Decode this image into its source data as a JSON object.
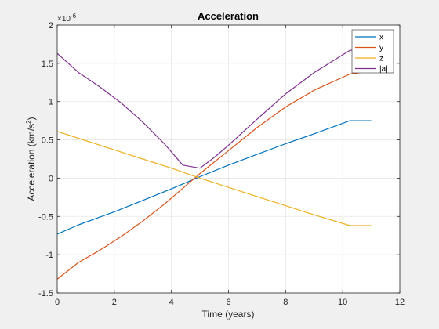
{
  "chart_data": {
    "type": "line",
    "title": "Acceleration",
    "xlabel": "Time (years)",
    "ylabel_main": "Acceleration (km/s",
    "ylabel_sup": "2",
    "ylabel_end": ")",
    "y_exponent_base": "×10",
    "y_exponent_power": "-6",
    "xlim": [
      0,
      12
    ],
    "ylim": [
      -1.5,
      2
    ],
    "xticks": [
      0,
      2,
      4,
      6,
      8,
      10,
      12
    ],
    "yticks": [
      -1.5,
      -1,
      -0.5,
      0,
      0.5,
      1,
      1.5,
      2
    ],
    "xtick_labels": [
      "0",
      "2",
      "4",
      "6",
      "8",
      "10",
      "12"
    ],
    "ytick_labels": [
      "-1.5",
      "-1",
      "-0.5",
      "0",
      "0.5",
      "1",
      "1.5",
      "2"
    ],
    "grid": true,
    "legend_position": "top-right",
    "series": [
      {
        "name": "x",
        "color": "#0072BD",
        "x": [
          0,
          0.75,
          2,
          3,
          4,
          5,
          6,
          7,
          8,
          9,
          10.25,
          11
        ],
        "y": [
          -0.73,
          -0.61,
          -0.44,
          -0.29,
          -0.14,
          0.02,
          0.17,
          0.31,
          0.45,
          0.58,
          0.75,
          0.75
        ]
      },
      {
        "name": "y",
        "color": "#D95319",
        "x": [
          0,
          0.75,
          1.5,
          2.25,
          3,
          3.75,
          4.5,
          5,
          5.5,
          6,
          7,
          8,
          9,
          10.25,
          11
        ],
        "y": [
          -1.32,
          -1.1,
          -0.94,
          -0.76,
          -0.56,
          -0.34,
          -0.1,
          0.06,
          0.21,
          0.36,
          0.66,
          0.93,
          1.15,
          1.36,
          1.4
        ]
      },
      {
        "name": "z",
        "color": "#EDB120",
        "x": [
          0,
          1,
          2,
          3,
          4,
          5,
          6,
          7,
          8,
          9,
          10.25,
          11
        ],
        "y": [
          0.61,
          0.49,
          0.37,
          0.25,
          0.13,
          0.0,
          -0.12,
          -0.24,
          -0.36,
          -0.48,
          -0.62,
          -0.62
        ]
      },
      {
        "name": "|a|",
        "color": "#7E2F8E",
        "x": [
          0,
          0.75,
          1.5,
          2.25,
          3,
          3.75,
          4.4,
          5,
          5.5,
          6,
          7,
          8,
          9,
          10.25,
          11
        ],
        "y": [
          1.63,
          1.38,
          1.19,
          0.98,
          0.73,
          0.45,
          0.17,
          0.13,
          0.27,
          0.43,
          0.77,
          1.1,
          1.38,
          1.67,
          1.7
        ]
      }
    ]
  }
}
